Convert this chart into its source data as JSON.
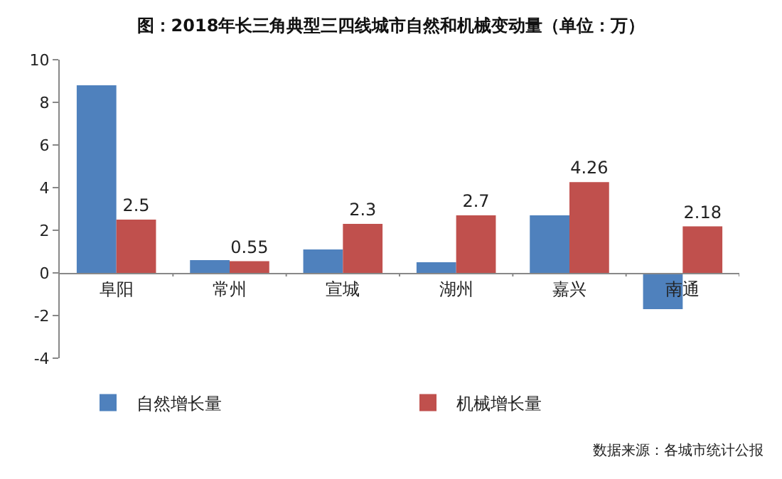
{
  "chart_data": {
    "type": "bar",
    "title": "图：2018年长三角典型三四线城市自然和机械变动量（单位：万）",
    "categories": [
      "阜阳",
      "常州",
      "宣城",
      "湖州",
      "嘉兴",
      "南通"
    ],
    "series": [
      {
        "name": "自然增长量",
        "color": "#4f81bd",
        "values": [
          8.8,
          0.6,
          1.1,
          0.5,
          2.7,
          -1.7
        ]
      },
      {
        "name": "机械增长量",
        "color": "#c0504d",
        "values": [
          2.5,
          0.55,
          2.3,
          2.7,
          4.26,
          2.18
        ],
        "value_labels": [
          "2.5",
          "0.55",
          "2.3",
          "2.7",
          "4.26",
          "2.18"
        ]
      }
    ],
    "ylim": [
      -4,
      10
    ],
    "yticks": [
      -4,
      -2,
      0,
      2,
      4,
      6,
      8,
      10
    ],
    "grid": false,
    "legend": "bottom",
    "annotations": [
      "数据来源：各城市统计公报"
    ]
  }
}
